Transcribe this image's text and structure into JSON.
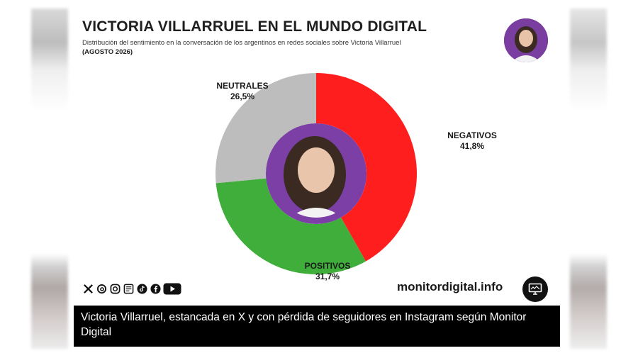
{
  "header": {
    "title": "VICTORIA VILLARRUEL EN EL MUNDO DIGITAL",
    "subtitle": "Distribución del sentimiento en la conversación de los argentinos en redes sociales sobre Victoria Villarruel",
    "period": "(AGOSTO 2026)"
  },
  "chart_data": {
    "type": "pie",
    "donut": true,
    "title": "VICTORIA VILLARRUEL EN EL MUNDO DIGITAL",
    "subtitle": "Distribución del sentimiento en la conversación de los argentinos en redes sociales sobre Victoria Villarruel",
    "slices": [
      {
        "name": "NEGATIVOS",
        "value": 41.8,
        "label": "41,8%",
        "color": "#ff1e1e"
      },
      {
        "name": "POSITIVOS",
        "value": 31.7,
        "label": "31,7%",
        "color": "#3fae3a"
      },
      {
        "name": "NEUTRALES",
        "value": 26.5,
        "label": "26,5%",
        "color": "#bdbdbd"
      }
    ],
    "center_image": "portrait-photo",
    "center_color": "#7b3fa6"
  },
  "footer": {
    "social_icons": [
      "x-icon",
      "threads-icon",
      "instagram-icon",
      "news-icon",
      "tiktok-icon",
      "facebook-icon",
      "youtube-icon"
    ],
    "site": "monitordigital.info",
    "badge_icon": "monitor-icon"
  },
  "caption": {
    "text": "Victoria Villarruel, estancada en X y con pérdida de seguidores en Instagram según Monitor Digital"
  }
}
